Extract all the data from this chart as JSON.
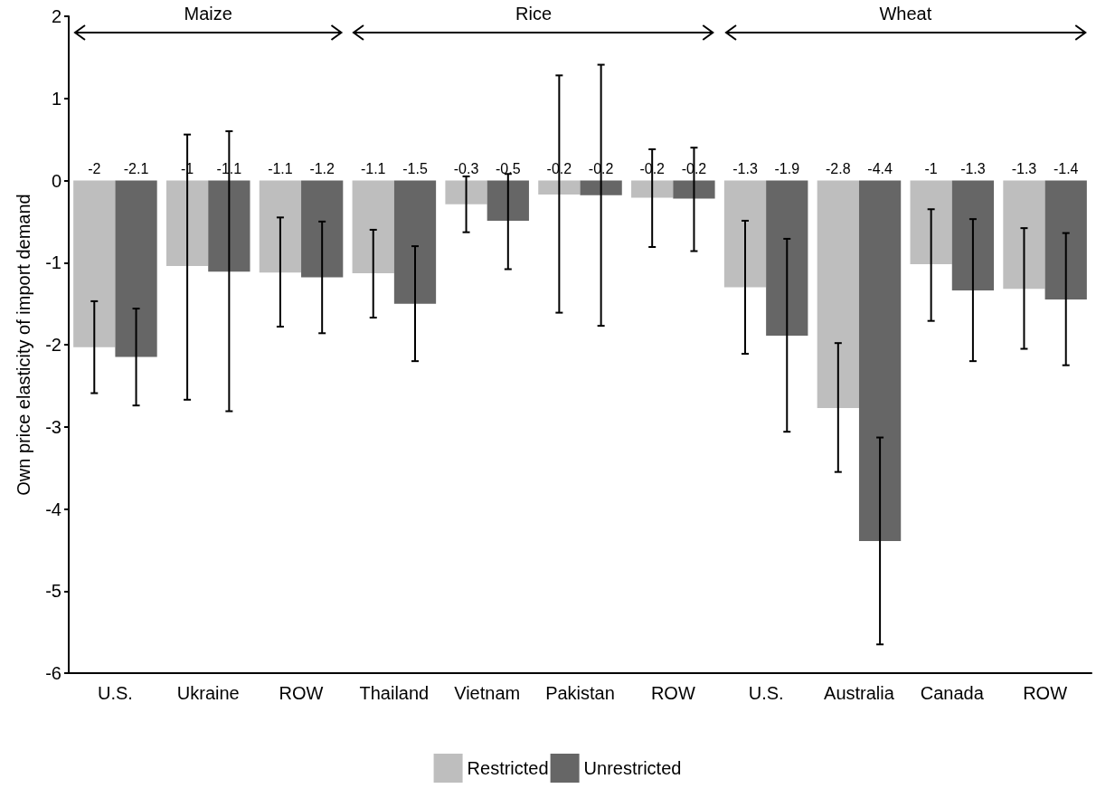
{
  "chart_data": {
    "type": "bar",
    "ylabel": "Own price elasticity of import demand",
    "annotations": [
      "Maize",
      "Rice",
      "Wheat"
    ],
    "categories": [
      "U.S.",
      "Ukraine",
      "ROW",
      "Thailand",
      "Vietnam",
      "Pakistan",
      "ROW",
      "U.S.",
      "Australia",
      "Canada",
      "ROW"
    ],
    "series": [
      {
        "name": "Restricted",
        "color": "#bebebe",
        "values": [
          -2.03,
          -1.04,
          -1.12,
          -1.13,
          -0.29,
          -0.17,
          -0.21,
          -1.3,
          -2.77,
          -1.02,
          -1.32
        ],
        "value_labels": [
          "-2",
          "-1",
          "-1.1",
          "-1.1",
          "-0.3",
          "-0.2",
          "-0.2",
          "-1.3",
          "-2.8",
          "-1",
          "-1.3"
        ],
        "errors": [
          [
            -2.59,
            -1.47
          ],
          [
            -2.67,
            0.56
          ],
          [
            -1.78,
            -0.45
          ],
          [
            -1.67,
            -0.6
          ],
          [
            -0.63,
            0.05
          ],
          [
            -1.61,
            1.28
          ],
          [
            -0.81,
            0.38
          ],
          [
            -2.11,
            -0.49
          ],
          [
            -3.55,
            -1.98
          ],
          [
            -1.71,
            -0.35
          ],
          [
            -2.05,
            -0.58
          ]
        ]
      },
      {
        "name": "Unrestricted",
        "color": "#666666",
        "values": [
          -2.15,
          -1.11,
          -1.18,
          -1.5,
          -0.49,
          -0.18,
          -0.22,
          -1.89,
          -4.39,
          -1.34,
          -1.45
        ],
        "value_labels": [
          "-2.1",
          "-1.1",
          "-1.2",
          "-1.5",
          "-0.5",
          "-0.2",
          "-0.2",
          "-1.9",
          "-4.4",
          "-1.3",
          "-1.4"
        ],
        "errors": [
          [
            -2.74,
            -1.56
          ],
          [
            -2.81,
            0.6
          ],
          [
            -1.86,
            -0.5
          ],
          [
            -2.2,
            -0.8
          ],
          [
            -1.08,
            0.08
          ],
          [
            -1.77,
            1.41
          ],
          [
            -0.86,
            0.4
          ],
          [
            -3.06,
            -0.71
          ],
          [
            -5.65,
            -3.13
          ],
          [
            -2.2,
            -0.47
          ],
          [
            -2.25,
            -0.64
          ]
        ]
      }
    ],
    "ylim": [
      -6,
      2
    ],
    "yticks": [
      -6,
      -5,
      -4,
      -3,
      -2,
      -1,
      0,
      1,
      2
    ],
    "grid": false,
    "legend": "bottom"
  }
}
